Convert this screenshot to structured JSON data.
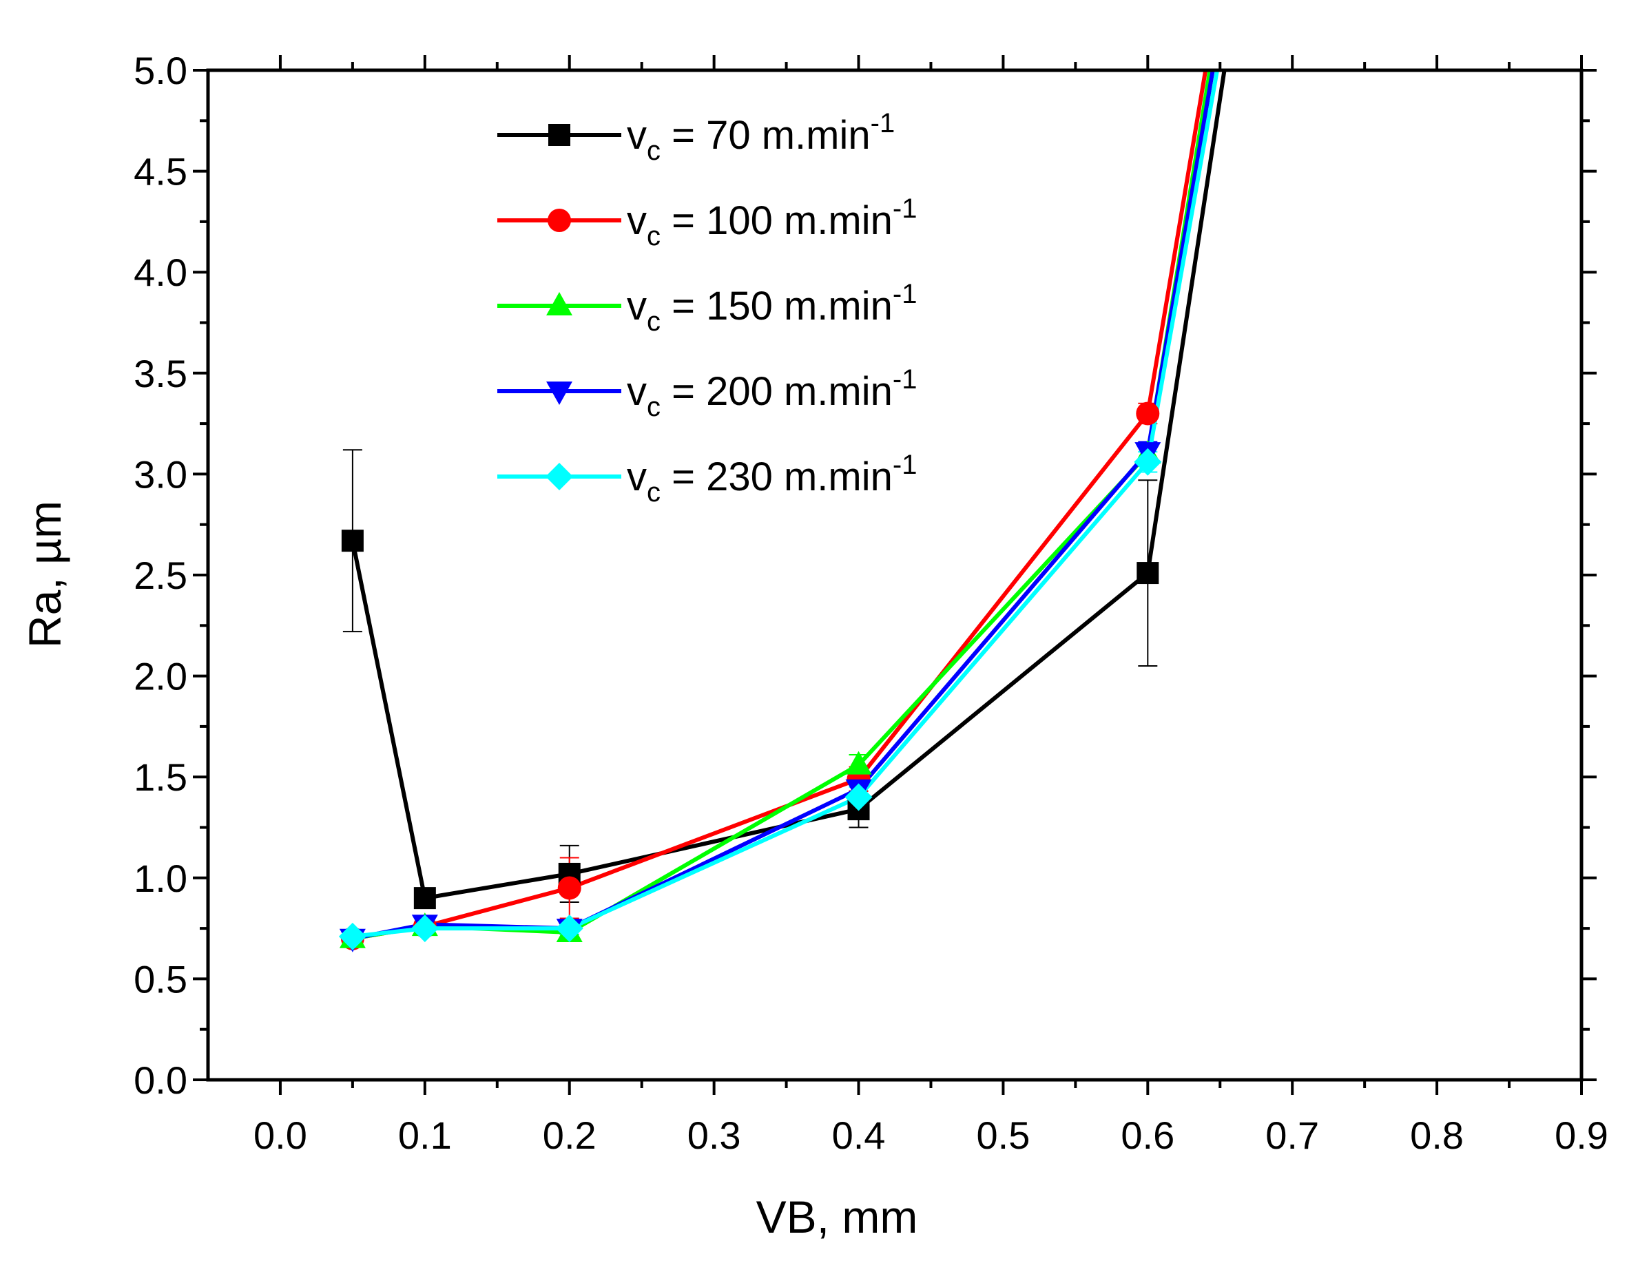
{
  "chart_data": {
    "type": "line",
    "title": "",
    "xlabel": "VB, mm",
    "ylabel": "Ra, µm",
    "xlim": [
      -0.05,
      0.9
    ],
    "ylim": [
      0.0,
      5.0
    ],
    "x_ticks": [
      "0.0",
      "0.1",
      "0.2",
      "0.3",
      "0.4",
      "0.5",
      "0.6",
      "0.7",
      "0.8",
      "0.9"
    ],
    "y_ticks": [
      "0.0",
      "0.5",
      "1.0",
      "1.5",
      "2.0",
      "2.5",
      "3.0",
      "3.5",
      "4.0",
      "4.5",
      "5.0"
    ],
    "grid": false,
    "legend_position": "top-center",
    "series": [
      {
        "name": "v_c = 70 m.min^-1",
        "legend": {
          "main": "v",
          "sub": "c",
          "text": " = 70 m.min",
          "sup": "-1"
        },
        "color": "#000000",
        "marker": "square",
        "x": [
          0.05,
          0.1,
          0.2,
          0.4,
          0.6,
          0.653
        ],
        "y": [
          2.67,
          0.9,
          1.02,
          1.34,
          2.51,
          5.0
        ],
        "marker_count": 5,
        "errors": [
          0.45,
          0.03,
          0.14,
          0.09,
          0.46,
          0
        ]
      },
      {
        "name": "v_c = 100 m.min^-1",
        "legend": {
          "main": "v",
          "sub": "c",
          "text": " = 100 m.min",
          "sup": "-1"
        },
        "color": "#ff0000",
        "marker": "circle",
        "x": [
          0.05,
          0.1,
          0.2,
          0.4,
          0.6,
          0.64
        ],
        "y": [
          0.7,
          0.76,
          0.95,
          1.49,
          3.3,
          5.0
        ],
        "marker_count": 5,
        "errors": [
          0.03,
          0.03,
          0.15,
          0.06,
          0.05,
          0
        ]
      },
      {
        "name": "v_c = 150 m.min^-1",
        "legend": {
          "main": "v",
          "sub": "c",
          "text": " = 150 m.min",
          "sup": "-1"
        },
        "color": "#00ff00",
        "marker": "triangle-up",
        "x": [
          0.05,
          0.1,
          0.2,
          0.4,
          0.6,
          0.643
        ],
        "y": [
          0.7,
          0.76,
          0.73,
          1.56,
          3.1,
          5.0
        ],
        "marker_count": 5,
        "errors": [
          0.02,
          0.03,
          0.03,
          0.05,
          0.05,
          0
        ]
      },
      {
        "name": "v_c = 200 m.min^-1",
        "legend": {
          "main": "v",
          "sub": "c",
          "text": " = 200 m.min",
          "sup": "-1"
        },
        "color": "#0000ff",
        "marker": "triangle-down",
        "x": [
          0.05,
          0.1,
          0.2,
          0.4,
          0.6,
          0.645
        ],
        "y": [
          0.7,
          0.77,
          0.75,
          1.44,
          3.11,
          5.0
        ],
        "marker_count": 5,
        "errors": [
          0.02,
          0.03,
          0.03,
          0.05,
          0.05,
          0
        ]
      },
      {
        "name": "v_c = 230 m.min^-1",
        "legend": {
          "main": "v",
          "sub": "c",
          "text": " = 230 m.min",
          "sup": "-1"
        },
        "color": "#00ffff",
        "marker": "diamond",
        "x": [
          0.05,
          0.1,
          0.2,
          0.4,
          0.6,
          0.648
        ],
        "y": [
          0.71,
          0.75,
          0.75,
          1.4,
          3.06,
          5.0
        ],
        "marker_count": 5,
        "errors": [
          0.02,
          0.03,
          0.03,
          0.05,
          0.05,
          0
        ]
      }
    ]
  }
}
